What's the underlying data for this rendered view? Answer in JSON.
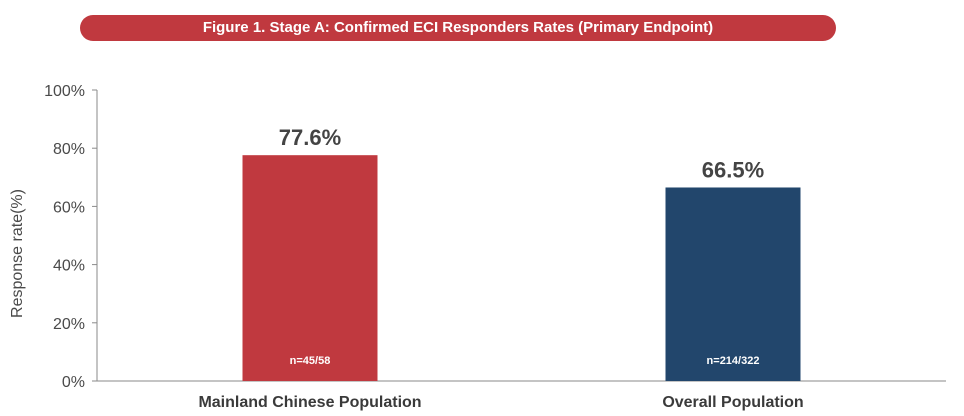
{
  "chart_data": {
    "type": "bar",
    "title": "Figure 1. Stage A: Confirmed ECI Responders Rates (Primary Endpoint)",
    "xlabel": "",
    "ylabel": "Response rate(%)",
    "ylim": [
      0,
      100
    ],
    "yticks": [
      "0%",
      "20%",
      "40%",
      "60%",
      "80%",
      "100%"
    ],
    "categories": [
      "Mainland Chinese Population",
      "Overall Population"
    ],
    "values": [
      77.6,
      66.5
    ],
    "value_labels": [
      "77.6%",
      "66.5%"
    ],
    "n_labels": [
      "n=45/58",
      "n=214/322"
    ],
    "colors": [
      "#c0393f",
      "#22466c"
    ],
    "grid": false,
    "legend": "none"
  }
}
